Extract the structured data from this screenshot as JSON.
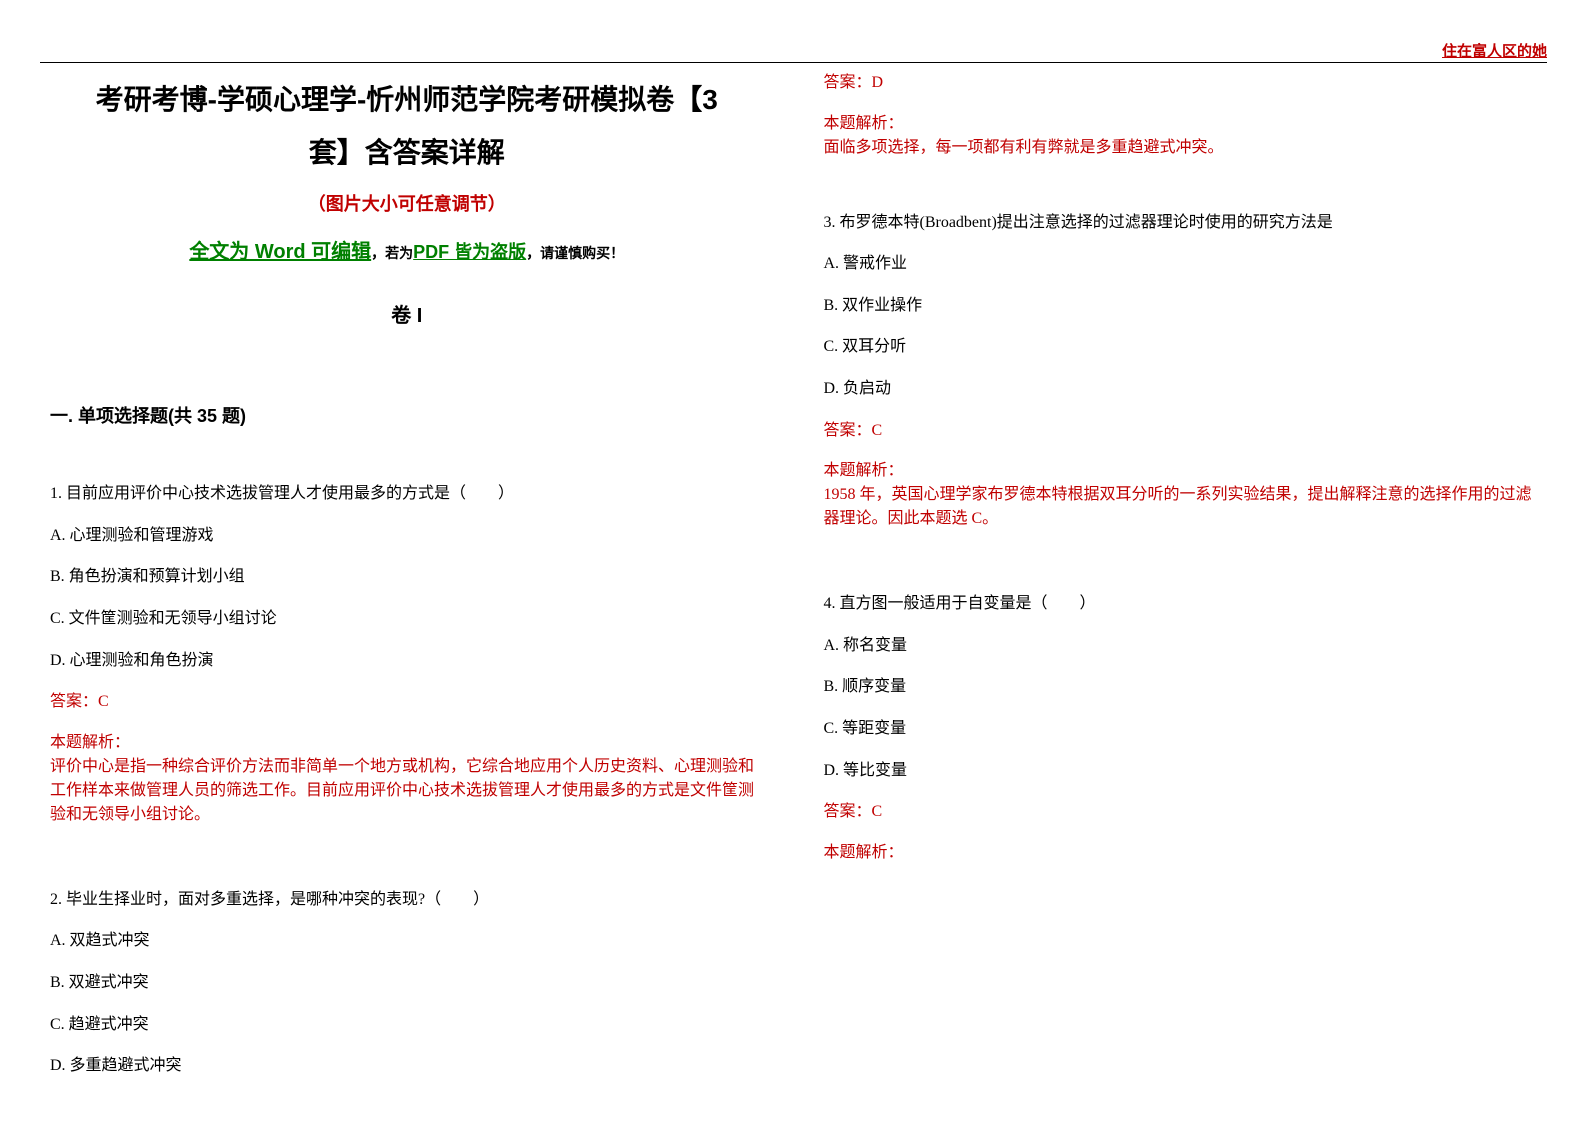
{
  "watermark": "住在富人区的她",
  "title_line1": "考研考博-学硕心理学-忻州师范学院考研模拟卷【3",
  "title_line2": "套】含答案详解",
  "subtitle": "（图片大小可任意调节）",
  "edit_note": {
    "part1": "全文为 Word 可编辑",
    "part2": "，若为",
    "part3": "PDF 皆为盗版",
    "part4": "，请谨慎购买！"
  },
  "volume_label": "卷 I",
  "part_header": "一. 单项选择题(共 35 题)",
  "q1": {
    "text": "1. 目前应用评价中心技术选拔管理人才使用最多的方式是（　　）",
    "A": "A. 心理测验和管理游戏",
    "B": "B. 角色扮演和预算计划小组",
    "C": "C. 文件筐测验和无领导小组讨论",
    "D": "D. 心理测验和角色扮演",
    "answer": "答案：C",
    "explain_label": "本题解析：",
    "explain": "评价中心是指一种综合评价方法而非简单一个地方或机构，它综合地应用个人历史资料、心理测验和工作样本来做管理人员的筛选工作。目前应用评价中心技术选拔管理人才使用最多的方式是文件筐测验和无领导小组讨论。"
  },
  "q2": {
    "text": "2. 毕业生择业时，面对多重选择，是哪种冲突的表现?（　　）",
    "A": "A. 双趋式冲突",
    "B": "B. 双避式冲突",
    "C": "C. 趋避式冲突",
    "D": "D. 多重趋避式冲突",
    "answer": "答案：D",
    "explain_label": "本题解析：",
    "explain": "面临多项选择，每一项都有利有弊就是多重趋避式冲突。"
  },
  "q3": {
    "text": "3. 布罗德本特(Broadbent)提出注意选择的过滤器理论时使用的研究方法是",
    "A": "A. 警戒作业",
    "B": "B. 双作业操作",
    "C": "C. 双耳分听",
    "D": "D. 负启动",
    "answer": "答案：C",
    "explain_label": "本题解析：",
    "explain": "1958 年，英国心理学家布罗德本特根据双耳分听的一系列实验结果，提出解释注意的选择作用的过滤器理论。因此本题选 C。"
  },
  "q4": {
    "text": "4. 直方图一般适用于自变量是（　　）",
    "A": "A. 称名变量",
    "B": "B. 顺序变量",
    "C": "C. 等距变量",
    "D": "D. 等比变量",
    "answer": "答案：C",
    "explain_label": "本题解析："
  }
}
